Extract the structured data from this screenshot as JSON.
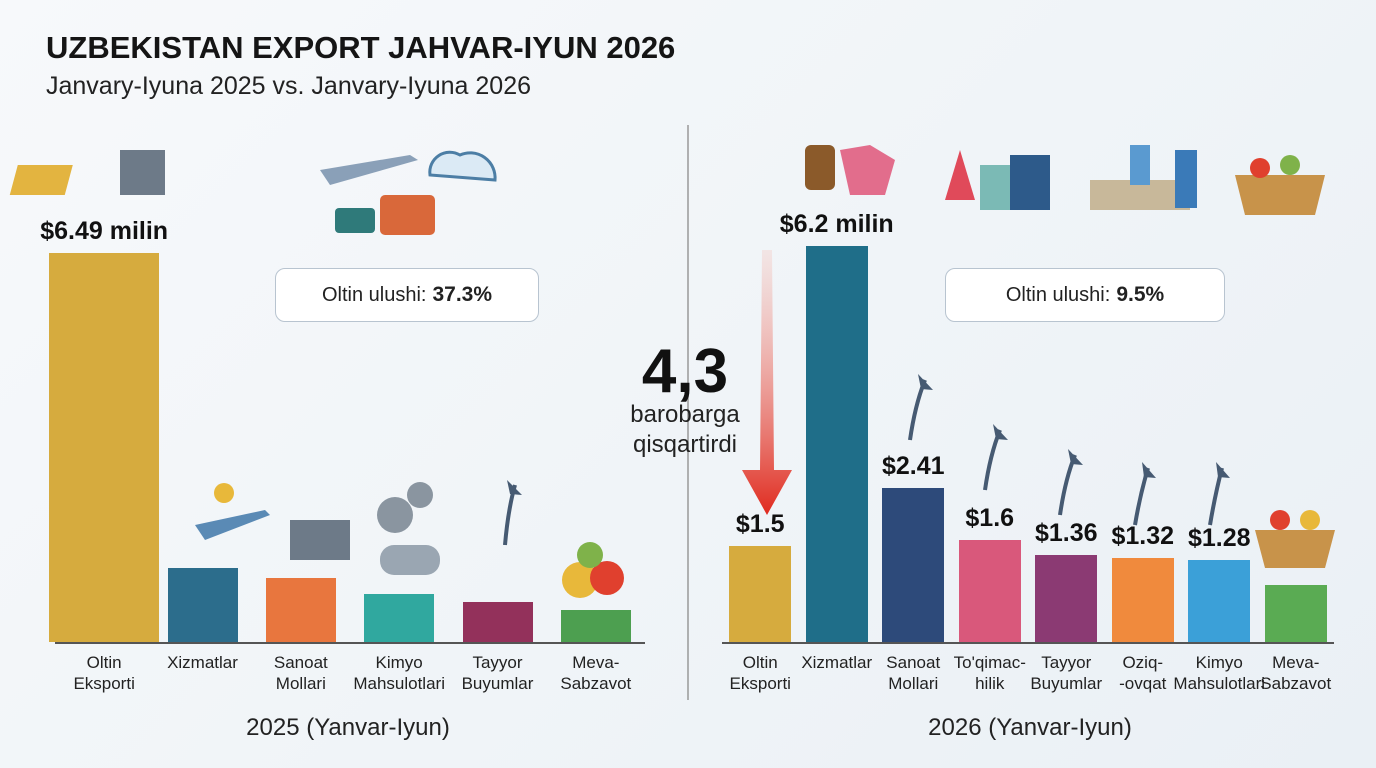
{
  "title": "UZBEKISTAN EXPORT JAHVAR-IYUN 2026",
  "subtitle": "Janvary-Iyuna 2025 vs. Janvary-Iyuna 2026",
  "comparison": {
    "value": "4,3",
    "text": "barobarga\nqisqartirdi"
  },
  "chart_data": [
    {
      "type": "bar",
      "xlabel": "2025 (Yanvar-Iyun)",
      "callout": {
        "label": "Oltin ulushi:",
        "value": "37.3%"
      },
      "categories": [
        "Oltin\nEksporti",
        "Xizmatlar",
        "Sanoat\nMollari",
        "Kimyo\nMahsulotlari",
        "Tayyor\nBuyumlar",
        "Meva-\nSabzavot"
      ],
      "values": [
        6.49,
        1.23,
        1.07,
        0.8,
        0.67,
        0.53
      ],
      "value_labels": [
        "$6.49 milin",
        null,
        null,
        null,
        null,
        null
      ],
      "colors": [
        "#d6ab3e",
        "#2c6d8c",
        "#e8763e",
        "#30a89f",
        "#93315b",
        "#4d9f50"
      ]
    },
    {
      "type": "bar",
      "xlabel": "2026 (Yanvar-Iyun)",
      "callout": {
        "label": "Oltin ulushi:",
        "value": "9.5%"
      },
      "categories": [
        "Oltin\nEksporti",
        "Xizmatlar",
        "Sanoat\nMollari",
        "To'qimac-\nhilik",
        "Tayyor\nBuyumlar",
        "Oziq-\n-ovqat",
        "Kimyo\nMahsulotlari",
        "Meva-\nSabzavot"
      ],
      "values": [
        1.5,
        6.2,
        2.41,
        1.6,
        1.36,
        1.32,
        1.28,
        0.9
      ],
      "value_labels": [
        "$1.5",
        "$6.2 milin",
        "$2.41",
        "$1.6",
        "$1.36",
        "$1.32",
        "$1.28",
        null
      ],
      "colors": [
        "#d6ab3e",
        "#1f6e89",
        "#2d4a7a",
        "#d9587b",
        "#8b3a73",
        "#f08a3d",
        "#3ba0d8",
        "#5aab53"
      ]
    }
  ]
}
